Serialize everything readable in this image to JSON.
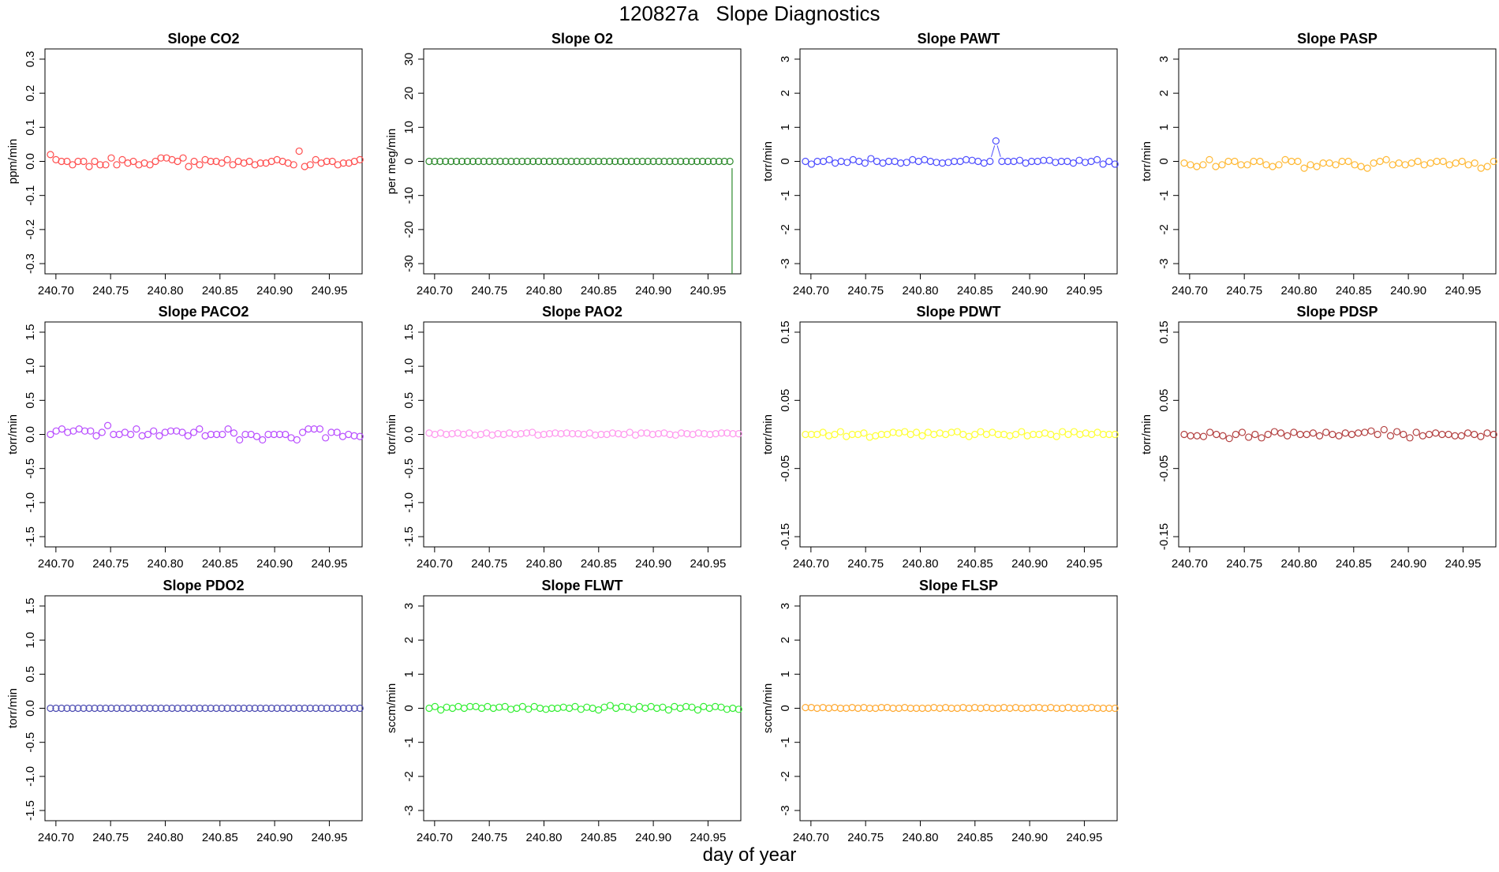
{
  "title": "120827a   Slope Diagnostics",
  "xlabel": "day of year",
  "chart_data": [
    {
      "type": "scatter",
      "title": "Slope CO2",
      "ylabel": "ppm/min",
      "color": "#ff4d4d",
      "xlim": [
        240.69,
        240.98
      ],
      "ylim": [
        -0.33,
        0.33
      ],
      "xticks": [
        240.7,
        240.75,
        240.8,
        240.85,
        240.9,
        240.95
      ],
      "yticks": [
        -0.3,
        -0.2,
        -0.1,
        0.0,
        0.1,
        0.2,
        0.3
      ],
      "ytick_labels": [
        "-0.3",
        "-0.2",
        "-0.1",
        "0.0",
        "0.1",
        "0.2",
        "0.3"
      ],
      "x_start": 240.695,
      "x_end": 240.978,
      "y": [
        0.02,
        0.005,
        0.0,
        0.0,
        -0.01,
        0.0,
        0.0,
        -0.015,
        0.0,
        -0.01,
        -0.01,
        0.01,
        -0.01,
        0.005,
        -0.005,
        0.0,
        -0.01,
        -0.005,
        -0.01,
        0.0,
        0.01,
        0.01,
        0.005,
        0.0,
        0.01,
        -0.015,
        0.0,
        -0.01,
        0.005,
        0.0,
        0.0,
        -0.005,
        0.005,
        -0.01,
        0.0,
        -0.005,
        0.0,
        -0.01,
        -0.005,
        -0.005,
        0.0,
        0.005,
        0.0,
        -0.005,
        -0.01,
        0.03,
        -0.015,
        -0.01,
        0.005,
        -0.005,
        0.0,
        0.0,
        -0.01,
        -0.005,
        -0.005,
        0.0,
        0.005
      ]
    },
    {
      "type": "scatter",
      "title": "Slope O2",
      "ylabel": "per meg/min",
      "color": "#2e8b2e",
      "xlim": [
        240.69,
        240.98
      ],
      "ylim": [
        -33,
        33
      ],
      "xticks": [
        240.7,
        240.75,
        240.8,
        240.85,
        240.9,
        240.95
      ],
      "yticks": [
        -30,
        -20,
        -10,
        0,
        10,
        20,
        30
      ],
      "ytick_labels": [
        "-30",
        "-20",
        "-10",
        "0",
        "10",
        "20",
        "30"
      ],
      "x_start": 240.695,
      "x_end": 240.97,
      "y": [
        0,
        0,
        0,
        0,
        0,
        0,
        0,
        0,
        0,
        0,
        0,
        0,
        0,
        0,
        0,
        0,
        0,
        0,
        0,
        0,
        0,
        0,
        0,
        0,
        0,
        0,
        0,
        0,
        0,
        0,
        0,
        0,
        0,
        0,
        0,
        0,
        0,
        0,
        0,
        0,
        0,
        0,
        0,
        0,
        0,
        0,
        0,
        0,
        0,
        0,
        0,
        0,
        0,
        0,
        0,
        0
      ],
      "vline": {
        "x": 240.972,
        "y_from": -2,
        "y_to": -33
      }
    },
    {
      "type": "scatter",
      "title": "Slope PAWT",
      "ylabel": "torr/min",
      "color": "#4d4dff",
      "xlim": [
        240.69,
        240.98
      ],
      "ylim": [
        -3.3,
        3.3
      ],
      "xticks": [
        240.7,
        240.75,
        240.8,
        240.85,
        240.9,
        240.95
      ],
      "yticks": [
        -3,
        -2,
        -1,
        0,
        1,
        2,
        3
      ],
      "ytick_labels": [
        "-3",
        "-2",
        "-1",
        "0",
        "1",
        "2",
        "3"
      ],
      "x_start": 240.695,
      "x_end": 240.978,
      "y": [
        0.0,
        -0.08,
        0.0,
        0.0,
        0.05,
        -0.05,
        0.0,
        -0.03,
        0.05,
        0.0,
        -0.05,
        0.08,
        0.0,
        -0.05,
        0.0,
        0.0,
        -0.05,
        -0.03,
        0.05,
        0.0,
        0.05,
        0.0,
        -0.03,
        -0.05,
        -0.03,
        0.0,
        0.0,
        0.05,
        0.03,
        0.0,
        -0.05,
        0.0,
        0.6,
        0.0,
        0.0,
        0.0,
        0.03,
        -0.05,
        0.0,
        0.0,
        0.03,
        0.03,
        -0.03,
        0.0,
        0.0,
        -0.05,
        0.03,
        -0.03,
        0.0,
        0.05,
        -0.08,
        0.0,
        -0.08
      ]
    },
    {
      "type": "scatter",
      "title": "Slope PASP",
      "ylabel": "torr/min",
      "color": "#ffb833",
      "xlim": [
        240.69,
        240.98
      ],
      "ylim": [
        -3.3,
        3.3
      ],
      "xticks": [
        240.7,
        240.75,
        240.8,
        240.85,
        240.9,
        240.95
      ],
      "yticks": [
        -3,
        -2,
        -1,
        0,
        1,
        2,
        3
      ],
      "ytick_labels": [
        "-3",
        "-2",
        "-1",
        "0",
        "1",
        "2",
        "3"
      ],
      "x_start": 240.695,
      "x_end": 240.978,
      "y": [
        -0.05,
        -0.1,
        -0.15,
        -0.1,
        0.05,
        -0.15,
        -0.1,
        0.0,
        0.0,
        -0.1,
        -0.1,
        0.0,
        0.0,
        -0.1,
        -0.15,
        -0.1,
        0.05,
        0.0,
        0.0,
        -0.2,
        -0.1,
        -0.15,
        -0.05,
        -0.05,
        -0.1,
        0.0,
        0.0,
        -0.1,
        -0.15,
        -0.2,
        -0.05,
        0.0,
        0.05,
        -0.1,
        -0.05,
        -0.1,
        -0.05,
        0.0,
        -0.1,
        -0.05,
        0.0,
        0.0,
        -0.1,
        -0.05,
        0.0,
        -0.1,
        -0.05,
        -0.2,
        -0.15,
        0.0
      ]
    },
    {
      "type": "scatter",
      "title": "Slope PACO2",
      "ylabel": "torr/min",
      "color": "#b84dff",
      "xlim": [
        240.69,
        240.98
      ],
      "ylim": [
        -1.65,
        1.65
      ],
      "xticks": [
        240.7,
        240.75,
        240.8,
        240.85,
        240.9,
        240.95
      ],
      "yticks": [
        -1.5,
        -1.0,
        -0.5,
        0.0,
        0.5,
        1.0,
        1.5
      ],
      "ytick_labels": [
        "-1.5",
        "-1.0",
        "-0.5",
        "0.0",
        "0.5",
        "1.0",
        "1.5"
      ],
      "x_start": 240.695,
      "x_end": 240.978,
      "y": [
        0.0,
        0.05,
        0.08,
        0.03,
        0.05,
        0.08,
        0.05,
        0.05,
        -0.02,
        0.03,
        0.13,
        0.0,
        0.0,
        0.03,
        0.0,
        0.08,
        -0.02,
        0.0,
        0.05,
        -0.02,
        0.03,
        0.05,
        0.05,
        0.03,
        -0.02,
        0.03,
        0.08,
        -0.02,
        0.0,
        0.0,
        0.0,
        0.08,
        0.02,
        -0.08,
        0.0,
        0.0,
        -0.03,
        -0.08,
        0.0,
        0.0,
        0.0,
        0.0,
        -0.05,
        -0.08,
        0.03,
        0.08,
        0.08,
        0.08,
        -0.05,
        0.03,
        0.03,
        -0.03,
        0.0,
        -0.02,
        -0.03
      ]
    },
    {
      "type": "scatter",
      "title": "Slope PAO2",
      "ylabel": "torr/min",
      "color": "#ff99ee",
      "xlim": [
        240.69,
        240.98
      ],
      "ylim": [
        -1.65,
        1.65
      ],
      "xticks": [
        240.7,
        240.75,
        240.8,
        240.85,
        240.9,
        240.95
      ],
      "yticks": [
        -1.5,
        -1.0,
        -0.5,
        0.0,
        0.5,
        1.0,
        1.5
      ],
      "ytick_labels": [
        "-1.5",
        "-1.0",
        "-0.5",
        "0.0",
        "0.5",
        "1.0",
        "1.5"
      ],
      "x_start": 240.695,
      "x_end": 240.978,
      "y": [
        0.02,
        0.0,
        0.02,
        0.0,
        0.01,
        0.02,
        0.0,
        0.02,
        -0.01,
        0.0,
        0.02,
        -0.01,
        0.01,
        0.0,
        0.02,
        0.0,
        0.01,
        0.02,
        0.03,
        -0.01,
        0.0,
        0.01,
        0.02,
        0.01,
        0.02,
        0.01,
        0.01,
        0.0,
        0.02,
        -0.01,
        0.0,
        0.0,
        0.02,
        0.01,
        0.0,
        0.03,
        -0.01,
        0.02,
        0.02,
        0.0,
        0.01,
        0.02,
        0.0,
        -0.01,
        0.02,
        0.01,
        0.0,
        0.02,
        0.01,
        0.0,
        0.01,
        0.02,
        0.02,
        0.01,
        0.01
      ]
    },
    {
      "type": "scatter",
      "title": "Slope PDWT",
      "ylabel": "torr/min",
      "color": "#ffff33",
      "xlim": [
        240.69,
        240.98
      ],
      "ylim": [
        -0.165,
        0.165
      ],
      "xticks": [
        240.7,
        240.75,
        240.8,
        240.85,
        240.9,
        240.95
      ],
      "yticks": [
        -0.15,
        -0.05,
        0.05,
        0.15
      ],
      "ytick_labels": [
        "-0.15",
        "-0.05",
        "0.05",
        "0.15"
      ],
      "x_start": 240.695,
      "x_end": 240.978,
      "y": [
        0.0,
        0.0,
        0.0,
        0.003,
        -0.002,
        0.0,
        0.004,
        -0.003,
        0.0,
        0.0,
        0.002,
        -0.004,
        -0.002,
        0.0,
        0.0,
        0.003,
        0.002,
        0.004,
        0.0,
        0.003,
        -0.002,
        0.003,
        0.0,
        0.002,
        0.0,
        0.003,
        0.004,
        0.0,
        -0.003,
        0.0,
        0.004,
        0.0,
        0.003,
        0.0,
        0.0,
        -0.002,
        0.0,
        0.004,
        -0.002,
        0.0,
        0.0,
        0.002,
        0.0,
        -0.003,
        0.004,
        0.0,
        0.004,
        0.0,
        0.002,
        0.0,
        0.003,
        0.0,
        0.0,
        0.0
      ]
    },
    {
      "type": "scatter",
      "title": "Slope PDSP",
      "ylabel": "torr/min",
      "color": "#b34040",
      "xlim": [
        240.69,
        240.98
      ],
      "ylim": [
        -0.165,
        0.165
      ],
      "xticks": [
        240.7,
        240.75,
        240.8,
        240.85,
        240.9,
        240.95
      ],
      "yticks": [
        -0.15,
        -0.05,
        0.05,
        0.15
      ],
      "ytick_labels": [
        "-0.15",
        "-0.05",
        "0.05",
        "0.15"
      ],
      "x_start": 240.695,
      "x_end": 240.978,
      "y": [
        0.0,
        -0.002,
        -0.002,
        -0.003,
        0.003,
        0.0,
        -0.002,
        -0.006,
        0.0,
        0.003,
        -0.004,
        0.0,
        -0.005,
        0.0,
        0.004,
        0.002,
        -0.002,
        0.003,
        0.0,
        0.0,
        0.002,
        -0.002,
        0.003,
        0.0,
        -0.002,
        0.002,
        0.0,
        0.002,
        0.003,
        0.005,
        0.0,
        0.007,
        -0.002,
        0.004,
        0.0,
        -0.005,
        0.003,
        -0.002,
        0.0,
        0.002,
        0.0,
        0.0,
        -0.002,
        -0.002,
        0.002,
        0.0,
        -0.003,
        0.002,
        0.0
      ]
    },
    {
      "type": "scatter",
      "title": "Slope PDO2",
      "ylabel": "torr/min",
      "color": "#4d4db3",
      "xlim": [
        240.69,
        240.98
      ],
      "ylim": [
        -1.65,
        1.65
      ],
      "xticks": [
        240.7,
        240.75,
        240.8,
        240.85,
        240.9,
        240.95
      ],
      "yticks": [
        -1.5,
        -1.0,
        -0.5,
        0.0,
        0.5,
        1.0,
        1.5
      ],
      "ytick_labels": [
        "-1.5",
        "-1.0",
        "-0.5",
        "0.0",
        "0.5",
        "1.0",
        "1.5"
      ],
      "x_start": 240.695,
      "x_end": 240.978,
      "y": [
        0,
        0,
        0,
        0,
        0,
        0,
        0,
        0,
        0,
        0,
        0,
        0,
        0,
        0,
        0,
        0,
        0,
        0,
        0,
        0,
        0,
        0,
        0,
        0,
        0,
        0,
        0,
        0,
        0,
        0,
        0,
        0,
        0,
        0,
        0,
        0,
        0,
        0,
        0,
        0,
        0,
        0,
        0,
        0,
        0,
        0,
        0,
        0,
        0,
        0,
        0,
        0,
        0,
        0,
        0,
        0,
        0
      ]
    },
    {
      "type": "scatter",
      "title": "Slope FLWT",
      "ylabel": "sccm/min",
      "color": "#33ee33",
      "xlim": [
        240.69,
        240.98
      ],
      "ylim": [
        -3.3,
        3.3
      ],
      "xticks": [
        240.7,
        240.75,
        240.8,
        240.85,
        240.9,
        240.95
      ],
      "yticks": [
        -3,
        -2,
        -1,
        0,
        1,
        2,
        3
      ],
      "ytick_labels": [
        "-3",
        "-2",
        "-1",
        "0",
        "1",
        "2",
        "3"
      ],
      "x_start": 240.695,
      "x_end": 240.978,
      "y": [
        0.0,
        0.05,
        -0.05,
        0.03,
        0.0,
        0.05,
        0.0,
        0.05,
        0.05,
        0.0,
        0.05,
        0.0,
        0.03,
        0.05,
        -0.03,
        0.0,
        0.05,
        -0.03,
        0.05,
        0.0,
        -0.03,
        0.0,
        0.0,
        0.03,
        0.0,
        0.05,
        -0.03,
        0.03,
        0.0,
        -0.05,
        0.03,
        0.08,
        0.0,
        0.05,
        0.03,
        -0.03,
        0.05,
        0.0,
        0.05,
        0.0,
        0.03,
        -0.05,
        0.05,
        0.0,
        0.05,
        0.03,
        -0.05,
        0.05,
        0.0,
        0.05,
        0.03,
        -0.03,
        0.0,
        -0.03
      ]
    },
    {
      "type": "scatter",
      "title": "Slope FLSP",
      "ylabel": "sccm/min",
      "color": "#ffaa33",
      "xlim": [
        240.69,
        240.98
      ],
      "ylim": [
        -3.3,
        3.3
      ],
      "xticks": [
        240.7,
        240.75,
        240.8,
        240.85,
        240.9,
        240.95
      ],
      "yticks": [
        -3,
        -2,
        -1,
        0,
        1,
        2,
        3
      ],
      "ytick_labels": [
        "-3",
        "-2",
        "-1",
        "0",
        "1",
        "2",
        "3"
      ],
      "x_start": 240.695,
      "x_end": 240.978,
      "y": [
        0.02,
        0.02,
        0.0,
        0.02,
        0.0,
        0.02,
        0.0,
        0.0,
        0.02,
        0.0,
        0.02,
        0.0,
        0.0,
        0.02,
        0.02,
        0.0,
        0.0,
        0.02,
        0.0,
        0.0,
        0.0,
        0.0,
        0.02,
        0.0,
        0.02,
        0.0,
        0.0,
        0.02,
        0.0,
        0.02,
        0.0,
        0.02,
        0.0,
        0.0,
        0.02,
        0.0,
        0.02,
        0.0,
        0.0,
        0.02,
        0.02,
        0.0,
        0.02,
        0.0,
        0.0,
        0.02,
        0.0,
        0.0,
        0.0,
        0.02,
        0.0,
        0.0,
        0.0,
        0.0
      ]
    }
  ]
}
